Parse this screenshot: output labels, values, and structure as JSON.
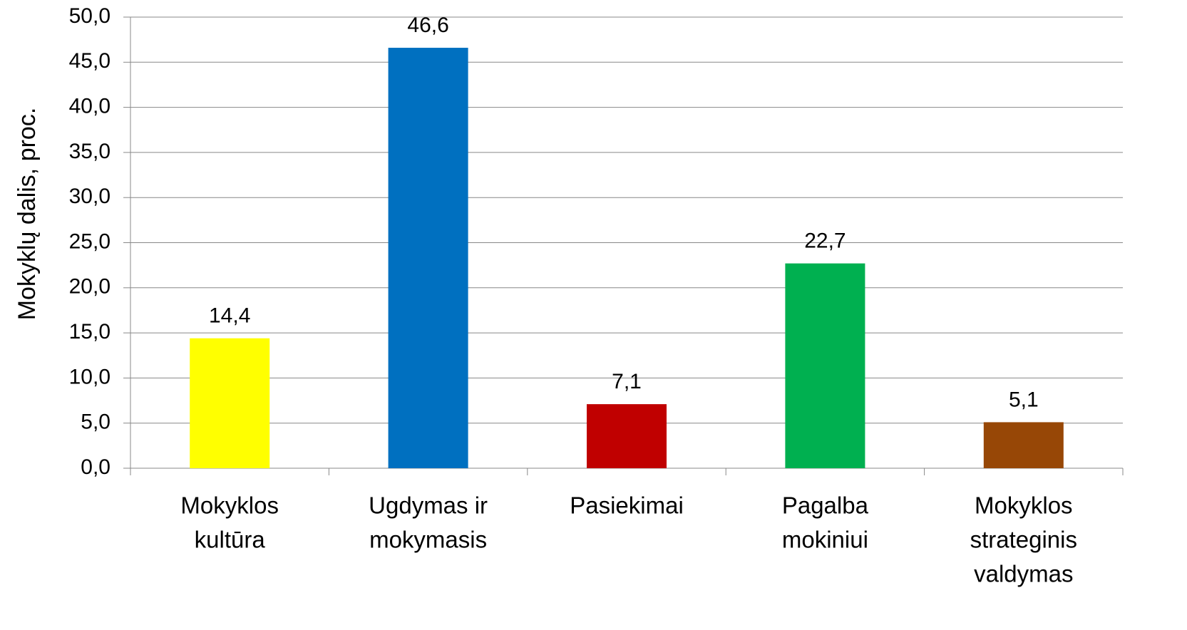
{
  "chart_data": {
    "type": "bar",
    "y_label": "Mokyklų dalis,  proc.",
    "categories": [
      [
        "Mokyklos",
        "kultūra"
      ],
      [
        "Ugdymas ir",
        "mokymasis"
      ],
      [
        "Pasiekimai"
      ],
      [
        "Pagalba",
        "mokiniui"
      ],
      [
        "Mokyklos",
        "strateginis",
        "valdymas"
      ]
    ],
    "values": [
      14.4,
      46.6,
      7.1,
      22.7,
      5.1
    ],
    "value_labels": [
      "14,4",
      "46,6",
      "7,1",
      "22,7",
      "5,1"
    ],
    "colors": [
      "#ffff00",
      "#0070c0",
      "#c00000",
      "#00b050",
      "#974706"
    ],
    "ylim": [
      0,
      50
    ],
    "yticks": [
      {
        "value": 0,
        "label": "0,0"
      },
      {
        "value": 5,
        "label": "5,0"
      },
      {
        "value": 10,
        "label": "10,0"
      },
      {
        "value": 15,
        "label": "15,0"
      },
      {
        "value": 20,
        "label": "20,0"
      },
      {
        "value": 25,
        "label": "25,0"
      },
      {
        "value": 30,
        "label": "30,0"
      },
      {
        "value": 35,
        "label": "35,0"
      },
      {
        "value": 40,
        "label": "40,0"
      },
      {
        "value": 45,
        "label": "45,0"
      },
      {
        "value": 50,
        "label": "50,0"
      }
    ],
    "grid": true
  }
}
